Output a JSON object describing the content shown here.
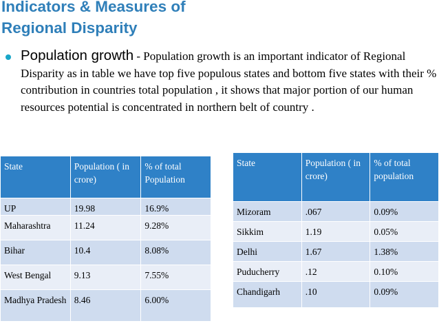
{
  "title": {
    "line1": "Indicators  & Measures of",
    "line2": "Regional Disparity"
  },
  "bullet": {
    "lead": "Population growth",
    "text": " - Population growth is an important indicator of Regional Disparity as in table we have top five populous states and bottom five states with their % contribution in countries total population  , it shows that major portion of our human resources potential is concentrated in northern belt of country ."
  },
  "table_left": {
    "headers": [
      "State",
      "Population ( in crore)",
      "% of total Population"
    ],
    "rows": [
      [
        "UP",
        "19.98",
        "16.9%"
      ],
      [
        "Maharashtra",
        "11.24",
        "9.28%"
      ],
      [
        "Bihar",
        "10.4",
        "8.08%"
      ],
      [
        "West Bengal",
        "9.13",
        "7.55%"
      ],
      [
        "Madhya Pradesh",
        "8.46",
        "6.00%"
      ]
    ]
  },
  "table_right": {
    "headers": [
      "State",
      "Population ( in crore)",
      "% of total population"
    ],
    "rows": [
      [
        "Mizoram",
        ".067",
        "0.09%"
      ],
      [
        "Sikkim",
        "1.19",
        "0.05%"
      ],
      [
        "Delhi",
        "1.67",
        "1.38%"
      ],
      [
        "Puducherry",
        ".12",
        "0.10%"
      ],
      [
        "Chandigarh",
        ".10",
        "0.09%"
      ]
    ]
  },
  "colors": {
    "title": "#2f7fb9",
    "header_bg": "#2f81c7",
    "row_odd": "#cfdcef",
    "row_even": "#e9eef7",
    "bullet": "#19a6c8"
  }
}
